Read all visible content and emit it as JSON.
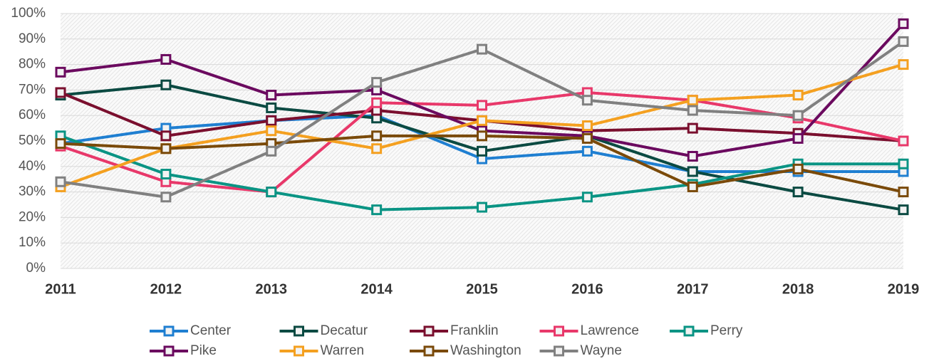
{
  "chart_data": {
    "type": "line",
    "categories": [
      "2011",
      "2012",
      "2013",
      "2014",
      "2015",
      "2016",
      "2017",
      "2018",
      "2019"
    ],
    "ylim": [
      0,
      100
    ],
    "yticks": [
      {
        "value": 0,
        "label": "0%"
      },
      {
        "value": 10,
        "label": "10%"
      },
      {
        "value": 20,
        "label": "20%"
      },
      {
        "value": 30,
        "label": "30%"
      },
      {
        "value": 40,
        "label": "40%"
      },
      {
        "value": 50,
        "label": "50%"
      },
      {
        "value": 60,
        "label": "60%"
      },
      {
        "value": 70,
        "label": "70%"
      },
      {
        "value": 80,
        "label": "80%"
      },
      {
        "value": 90,
        "label": "90%"
      },
      {
        "value": 100,
        "label": "100%"
      }
    ],
    "grid": true,
    "legend": "bottom",
    "series": [
      {
        "name": "Center",
        "color": "#1f7fd1",
        "values": [
          49,
          55,
          58,
          60,
          43,
          46,
          38,
          38,
          38
        ]
      },
      {
        "name": "Decatur",
        "color": "#0b4a42",
        "values": [
          68,
          72,
          63,
          59,
          46,
          52,
          38,
          30,
          23
        ]
      },
      {
        "name": "Franklin",
        "color": "#7a0f2e",
        "values": [
          69,
          52,
          58,
          62,
          58,
          54,
          55,
          53,
          50
        ]
      },
      {
        "name": "Lawrence",
        "color": "#e8386a",
        "values": [
          48,
          34,
          30,
          65,
          64,
          69,
          66,
          59,
          50
        ]
      },
      {
        "name": "Perry",
        "color": "#0a9484",
        "values": [
          52,
          37,
          30,
          23,
          24,
          28,
          33,
          41,
          41
        ]
      },
      {
        "name": "Pike",
        "color": "#6b0a5f",
        "values": [
          77,
          82,
          68,
          70,
          54,
          52,
          44,
          51,
          96
        ]
      },
      {
        "name": "Warren",
        "color": "#f4a020",
        "values": [
          32,
          47,
          54,
          47,
          58,
          56,
          66,
          68,
          80
        ]
      },
      {
        "name": "Washington",
        "color": "#7a4a0a",
        "values": [
          49,
          47,
          49,
          52,
          52,
          51,
          32,
          39,
          30
        ]
      },
      {
        "name": "Wayne",
        "color": "#808080",
        "values": [
          34,
          28,
          46,
          73,
          86,
          66,
          62,
          60,
          89
        ]
      }
    ]
  }
}
